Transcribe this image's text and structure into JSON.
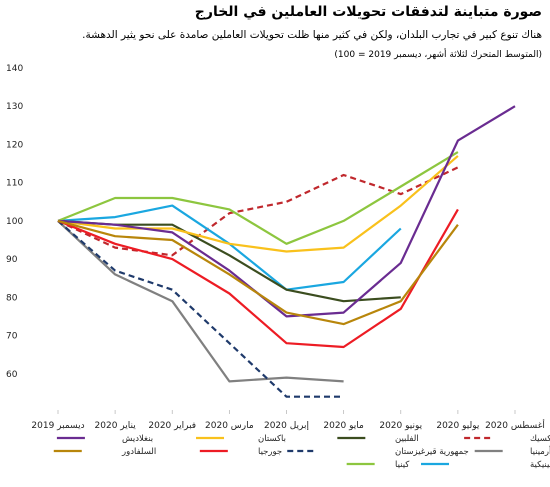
{
  "header": {
    "title": "صورة متباينة لتدفقات تحويلات العاملين في الخارج",
    "subtitle": "هناك تنوع كبير في تجارب البلدان، ولكن في كثير منها ظلت تحويلات العاملين صامدة على نحو يثير الدهشة.",
    "note": "(المتوسط المتحرك لثلاثة أشهر، ديسمبر 2019 = 100)"
  },
  "chart_data": {
    "type": "line",
    "x": [
      "ديسمبر 2019",
      "يناير 2020",
      "فبراير 2020",
      "مارس 2020",
      "إبريل 2020",
      "مايو 2020",
      "يونيو 2020",
      "يوليو 2020",
      "أغسطس 2020"
    ],
    "ylim": [
      50,
      140
    ],
    "yticks": [
      60,
      70,
      80,
      90,
      100,
      110,
      120,
      130,
      140
    ],
    "grid": false,
    "legend_position": "bottom",
    "series": [
      {
        "name": "المكسيك",
        "color": "#c0282d",
        "dash": "6,4",
        "values": [
          100,
          93,
          91,
          102,
          105,
          112,
          107,
          114,
          null
        ]
      },
      {
        "name": "أرمينيا",
        "color": "#808080",
        "dash": "",
        "values": [
          100,
          86,
          79,
          58,
          59,
          58,
          null,
          null,
          null
        ]
      },
      {
        "name": "الجمهورية الدومينيكية",
        "color": "#1aa7e0",
        "dash": "",
        "values": [
          100,
          101,
          104,
          94,
          82,
          84,
          98,
          null,
          null
        ]
      },
      {
        "name": "الفلبين",
        "color": "#3b4d1f",
        "dash": "",
        "values": [
          100,
          99,
          99,
          91,
          82,
          79,
          80,
          null,
          null
        ]
      },
      {
        "name": "جمهورية قيرغيزستان",
        "color": "#1f3a6b",
        "dash": "6,4",
        "values": [
          100,
          87,
          82,
          68,
          54,
          54,
          null,
          null,
          null
        ]
      },
      {
        "name": "كينيا",
        "color": "#8dc63f",
        "dash": "",
        "values": [
          100,
          106,
          106,
          103,
          94,
          100,
          109,
          118,
          null
        ]
      },
      {
        "name": "باكستان",
        "color": "#f9c11c",
        "dash": "",
        "values": [
          100,
          98,
          98,
          94,
          92,
          93,
          104,
          117,
          null
        ]
      },
      {
        "name": "جورجيا",
        "color": "#ed1c24",
        "dash": "",
        "values": [
          100,
          94,
          90,
          81,
          68,
          67,
          77,
          103,
          null
        ]
      },
      {
        "name": "بنغلاديش",
        "color": "#6a2c91",
        "dash": "",
        "values": [
          100,
          99,
          97,
          87,
          75,
          76,
          89,
          121,
          130
        ]
      },
      {
        "name": "السلفادور",
        "color": "#b8860b",
        "dash": "",
        "values": [
          100,
          96,
          95,
          86,
          76,
          73,
          79,
          99,
          null
        ]
      }
    ]
  }
}
